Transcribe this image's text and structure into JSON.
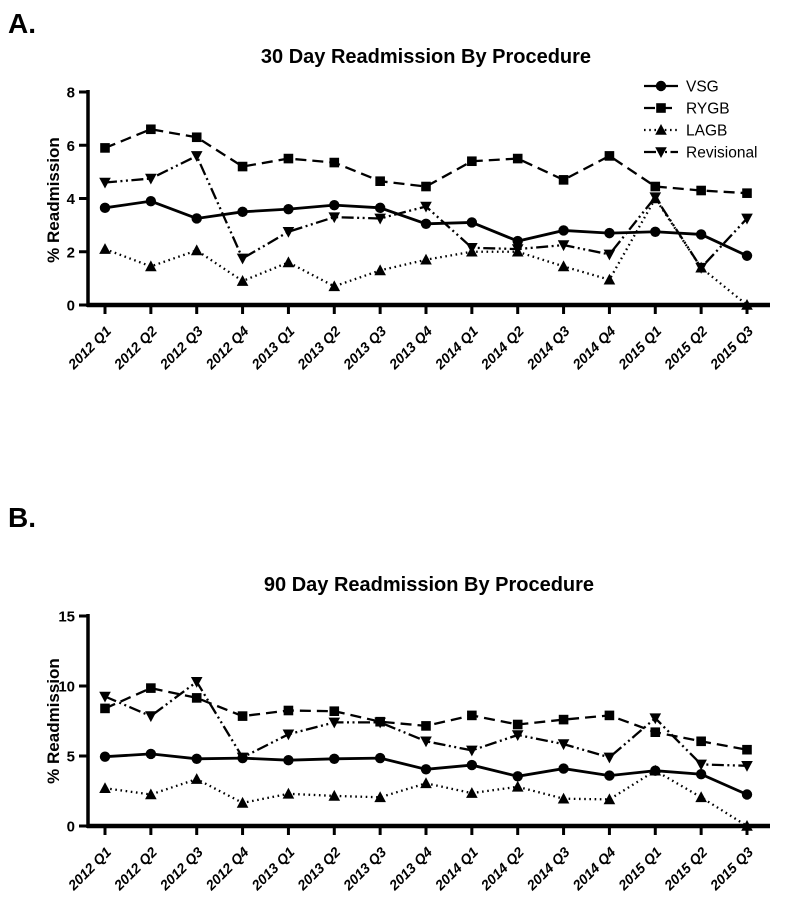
{
  "page": {
    "background": "#ffffff",
    "ink_color": "#000000"
  },
  "chart_data": [
    {
      "type": "line",
      "panel_label": "A.",
      "title": "30 Day Readmission By Procedure",
      "xlabel": "",
      "ylabel": "% Readmission",
      "ylim": [
        0,
        8
      ],
      "yticks": [
        0,
        2,
        4,
        6,
        8
      ],
      "grid": false,
      "legend_position": "top-right",
      "x_tick_rotation": 45,
      "categories": [
        "2012 Q1",
        "2012 Q2",
        "2012 Q3",
        "2012 Q4",
        "2013 Q1",
        "2013 Q2",
        "2013 Q3",
        "2013 Q4",
        "2014 Q1",
        "2014 Q2",
        "2014 Q3",
        "2014 Q4",
        "2015 Q1",
        "2015 Q2",
        "2015 Q3"
      ],
      "series": [
        {
          "name": "VSG",
          "marker": "circle",
          "line_style": "solid",
          "values": [
            3.65,
            3.9,
            3.25,
            3.5,
            3.6,
            3.75,
            3.65,
            3.05,
            3.1,
            2.4,
            2.8,
            2.7,
            2.75,
            2.65,
            1.85
          ]
        },
        {
          "name": "RYGB",
          "marker": "square",
          "line_style": "dashed",
          "values": [
            5.9,
            6.6,
            6.3,
            5.2,
            5.5,
            5.35,
            4.65,
            4.45,
            5.4,
            5.5,
            4.7,
            5.6,
            4.45,
            4.3,
            4.2
          ]
        },
        {
          "name": "LAGB",
          "marker": "triangle-up",
          "line_style": "dotted",
          "values": [
            2.1,
            1.45,
            2.05,
            0.9,
            1.6,
            0.7,
            1.3,
            1.7,
            2.0,
            2.0,
            1.45,
            0.95,
            4.0,
            1.4,
            0.0
          ]
        },
        {
          "name": "Revisional",
          "marker": "triangle-down",
          "line_style": "dash-dot-dot",
          "values": [
            4.6,
            4.75,
            5.6,
            1.75,
            2.75,
            3.3,
            3.25,
            3.7,
            2.15,
            2.1,
            2.25,
            1.9,
            4.05,
            1.4,
            3.25
          ]
        }
      ]
    },
    {
      "type": "line",
      "panel_label": "B.",
      "title": "90 Day Readmission By Procedure",
      "xlabel": "",
      "ylabel": "% Readmission",
      "ylim": [
        0,
        15
      ],
      "yticks": [
        0,
        5,
        10,
        15
      ],
      "grid": false,
      "legend_position": "none",
      "x_tick_rotation": 45,
      "categories": [
        "2012 Q1",
        "2012 Q2",
        "2012 Q3",
        "2012 Q4",
        "2013 Q1",
        "2013 Q2",
        "2013 Q3",
        "2013 Q4",
        "2014 Q1",
        "2014 Q2",
        "2014 Q3",
        "2014 Q4",
        "2015 Q1",
        "2015 Q2",
        "2015 Q3"
      ],
      "series": [
        {
          "name": "VSG",
          "marker": "circle",
          "line_style": "solid",
          "values": [
            4.95,
            5.15,
            4.8,
            4.85,
            4.7,
            4.8,
            4.85,
            4.05,
            4.35,
            3.55,
            4.1,
            3.6,
            3.95,
            3.7,
            2.25
          ]
        },
        {
          "name": "RYGB",
          "marker": "square",
          "line_style": "dashed",
          "values": [
            8.4,
            9.85,
            9.15,
            7.85,
            8.25,
            8.2,
            7.45,
            7.15,
            7.9,
            7.25,
            7.6,
            7.9,
            6.7,
            6.05,
            5.45
          ]
        },
        {
          "name": "LAGB",
          "marker": "triangle-up",
          "line_style": "dotted",
          "values": [
            2.7,
            2.25,
            3.35,
            1.65,
            2.3,
            2.15,
            2.05,
            3.05,
            2.35,
            2.8,
            1.95,
            1.9,
            3.95,
            2.05,
            0.0
          ]
        },
        {
          "name": "Revisional",
          "marker": "triangle-down",
          "line_style": "dash-dot-dot",
          "values": [
            9.25,
            7.85,
            10.3,
            4.9,
            6.55,
            7.4,
            7.4,
            6.05,
            5.4,
            6.5,
            5.85,
            4.9,
            7.7,
            4.4,
            4.3
          ]
        }
      ]
    }
  ]
}
